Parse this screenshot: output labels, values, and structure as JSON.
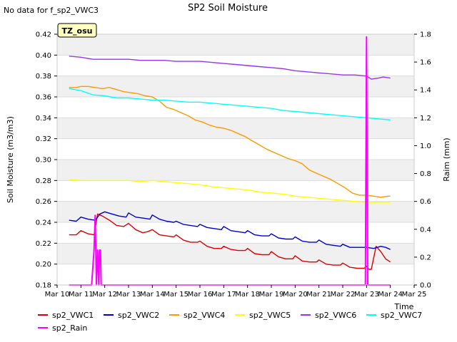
{
  "note": "No data for f_sp2_VWC3",
  "badge": "TZ_osu",
  "chart_data": {
    "type": "line",
    "title": "SP2 Soil Moisture",
    "xlabel": "Time",
    "ylabel": "Soil Moisture (m3/m3)",
    "y2label": "Raim (mm)",
    "xlim": [
      10,
      25
    ],
    "ylim": [
      0.18,
      0.42
    ],
    "y2lim": [
      0.0,
      1.8
    ],
    "xticks": [
      10,
      11,
      12,
      13,
      14,
      15,
      16,
      17,
      18,
      19,
      20,
      21,
      22,
      23,
      24,
      25
    ],
    "xtick_labels": [
      "Mar 10",
      "Mar 11",
      "Mar 12",
      "Mar 13",
      "Mar 14",
      "Mar 15",
      "Mar 16",
      "Mar 17",
      "Mar 18",
      "Mar 19",
      "Mar 20",
      "Mar 21",
      "Mar 22",
      "Mar 23",
      "Mar 24",
      "Mar 25"
    ],
    "yticks": [
      0.18,
      0.2,
      0.22,
      0.24,
      0.26,
      0.28,
      0.3,
      0.32,
      0.34,
      0.36,
      0.38,
      0.4,
      0.42
    ],
    "ytick_labels": [
      "0.18",
      "0.20",
      "0.22",
      "0.24",
      "0.26",
      "0.28",
      "0.30",
      "0.32",
      "0.34",
      "0.36",
      "0.38",
      "0.40",
      "0.42"
    ],
    "y2ticks": [
      0.0,
      0.2,
      0.4,
      0.6,
      0.8,
      1.0,
      1.2,
      1.4,
      1.6,
      1.8
    ],
    "y2tick_labels": [
      "0.0",
      "0.2",
      "0.4",
      "0.6",
      "0.8",
      "1.0",
      "1.2",
      "1.4",
      "1.6",
      "1.8"
    ],
    "grid": "horizontal bands",
    "legend_position": "bottom",
    "series": [
      {
        "name": "sp2_VWC1",
        "color": "#dd0000",
        "axis": "left",
        "x": [
          10.5,
          10.8,
          11.0,
          11.3,
          11.55,
          11.7,
          11.9,
          12.2,
          12.5,
          12.8,
          13.0,
          13.3,
          13.6,
          13.8,
          14.0,
          14.3,
          14.6,
          14.9,
          15.0,
          15.3,
          15.6,
          15.9,
          16.0,
          16.3,
          16.6,
          16.9,
          17.0,
          17.3,
          17.6,
          17.9,
          18.0,
          18.3,
          18.6,
          18.9,
          19.0,
          19.3,
          19.6,
          19.9,
          20.0,
          20.3,
          20.6,
          20.9,
          21.0,
          21.3,
          21.6,
          21.9,
          22.0,
          22.3,
          22.6,
          22.9,
          23.0,
          23.1,
          23.2,
          23.4,
          23.6,
          23.8,
          24.0
        ],
        "y": [
          0.228,
          0.228,
          0.232,
          0.229,
          0.228,
          0.248,
          0.246,
          0.242,
          0.237,
          0.236,
          0.239,
          0.233,
          0.23,
          0.231,
          0.233,
          0.228,
          0.227,
          0.226,
          0.228,
          0.223,
          0.221,
          0.221,
          0.222,
          0.217,
          0.215,
          0.215,
          0.217,
          0.214,
          0.213,
          0.213,
          0.215,
          0.21,
          0.209,
          0.209,
          0.212,
          0.207,
          0.205,
          0.205,
          0.208,
          0.203,
          0.202,
          0.202,
          0.204,
          0.2,
          0.199,
          0.199,
          0.201,
          0.197,
          0.196,
          0.196,
          0.198,
          0.195,
          0.195,
          0.217,
          0.212,
          0.205,
          0.202
        ]
      },
      {
        "name": "sp2_VWC2",
        "color": "#0000cc",
        "axis": "left",
        "x": [
          10.5,
          10.8,
          11.0,
          11.3,
          11.6,
          11.8,
          12.0,
          12.3,
          12.6,
          12.9,
          13.0,
          13.3,
          13.6,
          13.9,
          14.0,
          14.3,
          14.6,
          14.9,
          15.0,
          15.3,
          15.6,
          15.9,
          16.0,
          16.3,
          16.6,
          16.9,
          17.0,
          17.3,
          17.6,
          17.9,
          18.0,
          18.3,
          18.6,
          18.9,
          19.0,
          19.3,
          19.6,
          19.9,
          20.0,
          20.3,
          20.6,
          20.9,
          21.0,
          21.3,
          21.6,
          21.9,
          22.0,
          22.3,
          22.6,
          22.9,
          23.0,
          23.3,
          23.6,
          23.8,
          24.0
        ],
        "y": [
          0.242,
          0.241,
          0.245,
          0.243,
          0.242,
          0.248,
          0.25,
          0.248,
          0.246,
          0.245,
          0.249,
          0.245,
          0.244,
          0.243,
          0.247,
          0.243,
          0.241,
          0.24,
          0.241,
          0.238,
          0.237,
          0.236,
          0.238,
          0.235,
          0.234,
          0.233,
          0.236,
          0.232,
          0.231,
          0.23,
          0.232,
          0.228,
          0.227,
          0.227,
          0.229,
          0.225,
          0.224,
          0.224,
          0.226,
          0.222,
          0.221,
          0.221,
          0.223,
          0.219,
          0.218,
          0.217,
          0.219,
          0.216,
          0.216,
          0.216,
          0.216,
          0.215,
          0.217,
          0.216,
          0.214
        ]
      },
      {
        "name": "sp2_VWC4",
        "color": "#ff9900",
        "axis": "left",
        "x": [
          10.5,
          10.8,
          11.0,
          11.3,
          11.6,
          11.9,
          12.2,
          12.5,
          12.8,
          13.1,
          13.4,
          13.7,
          14.0,
          14.3,
          14.6,
          14.9,
          15.2,
          15.5,
          15.8,
          16.1,
          16.4,
          16.7,
          17.0,
          17.3,
          17.6,
          17.9,
          18.2,
          18.5,
          18.8,
          19.1,
          19.4,
          19.7,
          20.0,
          20.3,
          20.6,
          20.9,
          21.2,
          21.5,
          21.8,
          22.1,
          22.4,
          22.7,
          23.0,
          23.3,
          23.6,
          23.9,
          24.0
        ],
        "y": [
          0.369,
          0.369,
          0.37,
          0.37,
          0.369,
          0.368,
          0.369,
          0.367,
          0.365,
          0.364,
          0.363,
          0.361,
          0.36,
          0.356,
          0.35,
          0.348,
          0.345,
          0.342,
          0.338,
          0.336,
          0.333,
          0.331,
          0.33,
          0.328,
          0.325,
          0.322,
          0.318,
          0.314,
          0.31,
          0.307,
          0.304,
          0.301,
          0.299,
          0.296,
          0.29,
          0.287,
          0.284,
          0.281,
          0.277,
          0.273,
          0.268,
          0.266,
          0.266,
          0.265,
          0.264,
          0.265,
          0.265
        ]
      },
      {
        "name": "sp2_VWC5",
        "color": "#ffff00",
        "axis": "left",
        "x": [
          10.5,
          11.0,
          11.5,
          12.0,
          12.5,
          13.0,
          13.5,
          14.0,
          14.5,
          15.0,
          15.5,
          16.0,
          16.5,
          17.0,
          17.5,
          18.0,
          18.5,
          19.0,
          19.5,
          20.0,
          20.5,
          21.0,
          21.5,
          22.0,
          22.5,
          23.0,
          23.5,
          24.0
        ],
        "y": [
          0.281,
          0.28,
          0.28,
          0.28,
          0.28,
          0.28,
          0.279,
          0.28,
          0.279,
          0.278,
          0.277,
          0.276,
          0.274,
          0.273,
          0.272,
          0.271,
          0.269,
          0.268,
          0.267,
          0.265,
          0.264,
          0.263,
          0.262,
          0.261,
          0.26,
          0.259,
          0.259,
          0.259
        ]
      },
      {
        "name": "sp2_VWC6",
        "color": "#9933ee",
        "axis": "left",
        "x": [
          10.5,
          11.0,
          11.5,
          12.0,
          12.5,
          13.0,
          13.5,
          14.0,
          14.5,
          15.0,
          15.5,
          16.0,
          16.5,
          17.0,
          17.5,
          18.0,
          18.5,
          19.0,
          19.5,
          20.0,
          20.5,
          21.0,
          21.5,
          22.0,
          22.5,
          23.0,
          23.2,
          23.5,
          23.7,
          24.0
        ],
        "y": [
          0.399,
          0.398,
          0.396,
          0.396,
          0.396,
          0.396,
          0.395,
          0.395,
          0.395,
          0.394,
          0.394,
          0.394,
          0.393,
          0.392,
          0.391,
          0.39,
          0.389,
          0.388,
          0.387,
          0.385,
          0.384,
          0.383,
          0.382,
          0.381,
          0.381,
          0.38,
          0.377,
          0.378,
          0.379,
          0.378
        ]
      },
      {
        "name": "sp2_VWC7",
        "color": "#00ffff",
        "axis": "left",
        "x": [
          10.5,
          11.0,
          11.5,
          12.0,
          12.5,
          13.0,
          13.5,
          14.0,
          14.5,
          15.0,
          15.5,
          16.0,
          16.5,
          17.0,
          17.5,
          18.0,
          18.5,
          19.0,
          19.5,
          20.0,
          20.5,
          21.0,
          21.5,
          22.0,
          22.5,
          23.0,
          23.5,
          24.0
        ],
        "y": [
          0.368,
          0.366,
          0.362,
          0.361,
          0.359,
          0.359,
          0.358,
          0.357,
          0.357,
          0.356,
          0.355,
          0.355,
          0.354,
          0.353,
          0.352,
          0.351,
          0.35,
          0.349,
          0.347,
          0.346,
          0.345,
          0.344,
          0.343,
          0.342,
          0.341,
          0.34,
          0.339,
          0.338
        ]
      },
      {
        "name": "sp2_Rain",
        "color": "#ff00ff",
        "axis": "right",
        "x": [
          10.5,
          11.45,
          11.55,
          11.6,
          11.65,
          11.7,
          11.75,
          11.78,
          11.82,
          11.85,
          11.88,
          22.9,
          22.95,
          23.0,
          23.05,
          23.1,
          24.0
        ],
        "y": [
          0.0,
          0.0,
          0.25,
          0.5,
          0.0,
          0.25,
          0.0,
          0.25,
          0.25,
          0.0,
          0.0,
          0.0,
          0.0,
          1.78,
          0.0,
          0.0,
          0.0
        ]
      }
    ]
  }
}
